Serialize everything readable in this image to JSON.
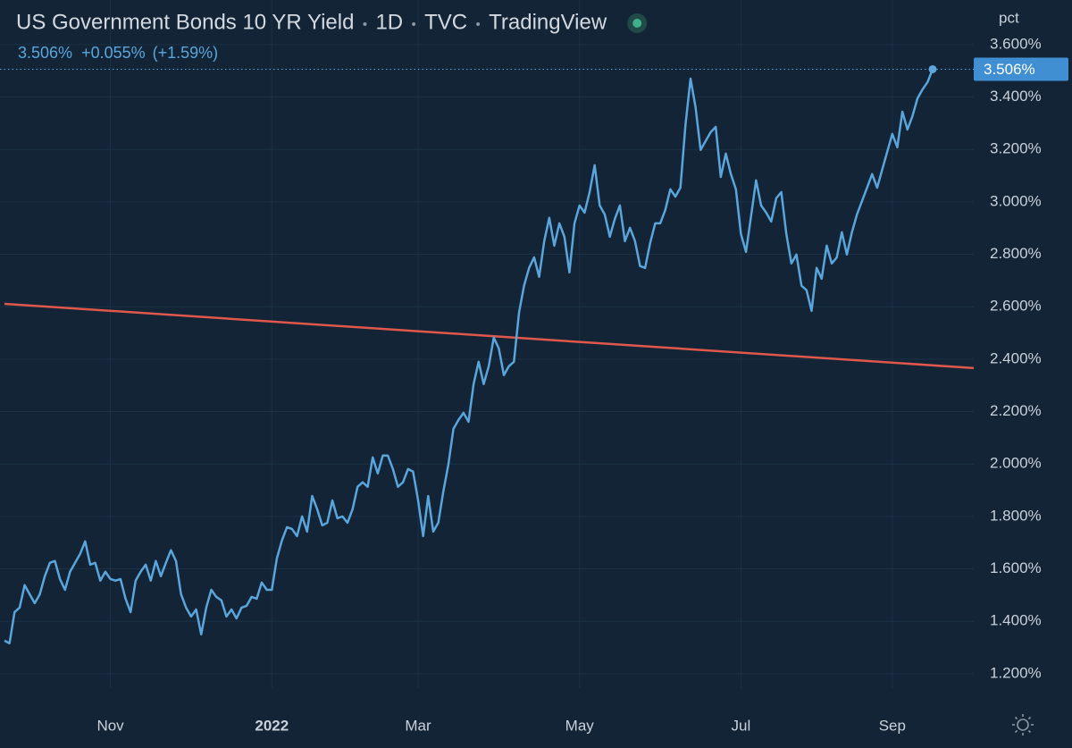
{
  "chart_data": {
    "type": "line",
    "title": "US Government Bonds 10 YR Yield",
    "interval": "1D",
    "exchange": "TVC",
    "provider": "TradingView",
    "last_value_label": "3.506%",
    "change_label": "+0.055%",
    "change_pct_label": "(+1.59%)",
    "y_axis_label": "pct",
    "color": "#5aa6dc",
    "categories": [
      null,
      null,
      null,
      null,
      null,
      null,
      null,
      null,
      null,
      null,
      null,
      null,
      null,
      null,
      null,
      null,
      null,
      null,
      null,
      null,
      null,
      "Nov",
      null,
      null,
      null,
      null,
      null,
      null,
      null,
      null,
      null,
      null,
      null,
      null,
      null,
      null,
      null,
      null,
      null,
      null,
      null,
      null,
      null,
      null,
      null,
      null,
      null,
      null,
      null,
      null,
      null,
      null,
      null,
      "2022",
      null,
      null,
      null,
      null,
      null,
      null,
      null,
      null,
      null,
      null,
      null,
      null,
      null,
      null,
      null,
      null,
      null,
      null,
      null,
      null,
      null,
      null,
      null,
      null,
      null,
      null,
      null,
      null,
      "Mar",
      null,
      null,
      null,
      null,
      null,
      null,
      null,
      null,
      null,
      null,
      null,
      null,
      null,
      null,
      null,
      null,
      null,
      null,
      null,
      null,
      null,
      null,
      null,
      null,
      null,
      null,
      null,
      null,
      null,
      null,
      null,
      "May",
      null,
      null,
      null,
      null,
      null,
      null,
      null,
      null,
      null,
      null,
      null,
      null,
      null,
      null,
      null,
      null,
      null,
      null,
      null,
      null,
      null,
      null,
      null,
      null,
      null,
      null,
      null,
      null,
      null,
      null,
      null,
      "Jul",
      null,
      null,
      null,
      null,
      null,
      null,
      null,
      null,
      null,
      null,
      null,
      null,
      null,
      null,
      null,
      null,
      null,
      null,
      null,
      null,
      null,
      null,
      null,
      null,
      null,
      null,
      null,
      null,
      null,
      "Sep",
      null,
      null,
      null,
      null,
      null,
      null,
      null,
      null
    ],
    "values": [
      1.326,
      1.316,
      1.435,
      1.452,
      1.538,
      1.503,
      1.469,
      1.503,
      1.572,
      1.623,
      1.63,
      1.561,
      1.52,
      1.589,
      1.623,
      1.657,
      1.705,
      1.616,
      1.623,
      1.555,
      1.589,
      1.561,
      1.555,
      1.561,
      1.486,
      1.435,
      1.555,
      1.589,
      1.616,
      1.555,
      1.63,
      1.572,
      1.623,
      1.671,
      1.63,
      1.503,
      1.452,
      1.418,
      1.445,
      1.35,
      1.452,
      1.52,
      1.493,
      1.48,
      1.418,
      1.445,
      1.411,
      1.452,
      1.459,
      1.493,
      1.486,
      1.548,
      1.52,
      1.52,
      1.64,
      1.708,
      1.759,
      1.752,
      1.725,
      1.8,
      1.742,
      1.878,
      1.827,
      1.766,
      1.776,
      1.861,
      1.793,
      1.8,
      1.776,
      1.827,
      1.913,
      1.93,
      1.913,
      2.025,
      1.964,
      2.032,
      2.032,
      1.981,
      1.913,
      1.93,
      1.981,
      1.971,
      1.861,
      1.725,
      1.878,
      1.742,
      1.776,
      1.895,
      1.998,
      2.134,
      2.168,
      2.195,
      2.161,
      2.305,
      2.39,
      2.305,
      2.373,
      2.482,
      2.441,
      2.339,
      2.373,
      2.39,
      2.577,
      2.68,
      2.748,
      2.788,
      2.714,
      2.85,
      2.939,
      2.833,
      2.918,
      2.867,
      2.731,
      2.918,
      2.986,
      2.959,
      3.037,
      3.14,
      2.986,
      2.952,
      2.867,
      2.935,
      2.986,
      2.85,
      2.901,
      2.85,
      2.755,
      2.748,
      2.843,
      2.918,
      2.918,
      2.969,
      3.048,
      3.02,
      3.054,
      3.293,
      3.47,
      3.361,
      3.198,
      3.232,
      3.266,
      3.286,
      3.095,
      3.184,
      3.106,
      3.048,
      2.877,
      2.809,
      2.945,
      3.082,
      2.986,
      2.959,
      2.925,
      3.014,
      3.037,
      2.877,
      2.765,
      2.799,
      2.68,
      2.663,
      2.584,
      2.748,
      2.707,
      2.833,
      2.765,
      2.788,
      2.884,
      2.799,
      2.884,
      2.952,
      3.003,
      3.054,
      3.106,
      3.054,
      3.123,
      3.191,
      3.259,
      3.208,
      3.344,
      3.276,
      3.327,
      3.395,
      3.429,
      3.457,
      3.506
    ],
    "trend_line": {
      "color": "#e0574b",
      "values": [
        2.611,
        2.366
      ]
    },
    "ylim": [
      1.145,
      3.77
    ],
    "yticks": [
      {
        "value": 1.2,
        "label": "1.200%"
      },
      {
        "value": 1.4,
        "label": "1.400%"
      },
      {
        "value": 1.6,
        "label": "1.600%"
      },
      {
        "value": 1.8,
        "label": "1.800%"
      },
      {
        "value": 2.0,
        "label": "2.000%"
      },
      {
        "value": 2.2,
        "label": "2.200%"
      },
      {
        "value": 2.4,
        "label": "2.400%"
      },
      {
        "value": 2.6,
        "label": "2.600%"
      },
      {
        "value": 2.8,
        "label": "2.800%"
      },
      {
        "value": 3.0,
        "label": "3.000%"
      },
      {
        "value": 3.2,
        "label": "3.200%"
      },
      {
        "value": 3.4,
        "label": "3.400%"
      },
      {
        "value": 3.6,
        "label": "3.600%"
      }
    ],
    "grid": true
  }
}
